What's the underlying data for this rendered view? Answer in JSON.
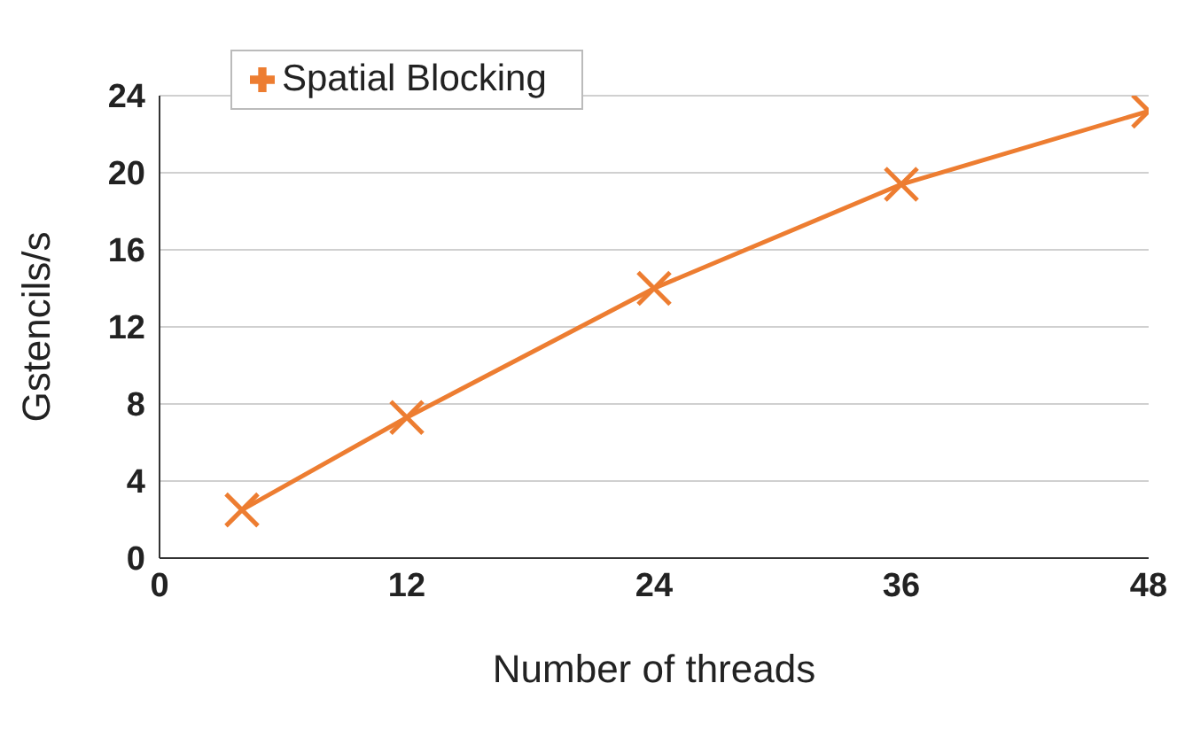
{
  "chart_data": {
    "type": "line",
    "x": [
      4,
      12,
      24,
      36,
      48
    ],
    "series": [
      {
        "name": "Spatial Blocking",
        "color": "#ed7d31",
        "values": [
          2.5,
          7.3,
          14.0,
          19.4,
          23.2
        ]
      }
    ],
    "xlabel": "Number of threads",
    "ylabel": "Gstencils/s",
    "xlim": [
      0,
      48
    ],
    "xticks": [
      0,
      12,
      24,
      36,
      48
    ],
    "ylim": [
      0,
      24
    ],
    "yticks": [
      0,
      4,
      8,
      12,
      16,
      20,
      24
    ],
    "grid": "y",
    "legend": "top left",
    "marker": "cross",
    "line_style": "solid"
  }
}
